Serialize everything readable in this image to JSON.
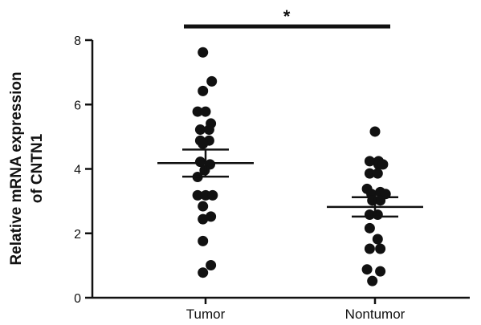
{
  "chart_data": {
    "type": "scatter",
    "ylabel_lines": [
      "Relative mRNA expression",
      "of CNTN1"
    ],
    "ylim": [
      0,
      8
    ],
    "yticks": [
      0,
      2,
      4,
      6,
      8
    ],
    "grid": false,
    "categories": [
      "Tumor",
      "Nontumor"
    ],
    "groups": [
      {
        "category": "Tumor",
        "mean": 4.18,
        "sem_low": 3.76,
        "sem_high": 4.6,
        "points": [
          [
            -0.03,
            7.62
          ],
          [
            -0.03,
            6.42
          ],
          [
            0.07,
            6.72
          ],
          [
            -0.09,
            5.78
          ],
          [
            0.0,
            5.78
          ],
          [
            0.06,
            5.41
          ],
          [
            -0.06,
            5.22
          ],
          [
            0.04,
            5.22
          ],
          [
            -0.06,
            4.88
          ],
          [
            0.04,
            4.88
          ],
          [
            -0.03,
            4.78
          ],
          [
            -0.06,
            4.22
          ],
          [
            0.05,
            4.14
          ],
          [
            -0.01,
            3.96
          ],
          [
            -0.09,
            3.75
          ],
          [
            -0.09,
            3.18
          ],
          [
            0.0,
            3.18
          ],
          [
            0.08,
            3.18
          ],
          [
            -0.03,
            2.84
          ],
          [
            -0.03,
            2.44
          ],
          [
            0.06,
            2.52
          ],
          [
            -0.03,
            1.76
          ],
          [
            0.06,
            1.01
          ],
          [
            -0.03,
            0.78
          ]
        ]
      },
      {
        "category": "Nontumor",
        "mean": 2.82,
        "sem_low": 2.52,
        "sem_high": 3.12,
        "points": [
          [
            0.0,
            5.16
          ],
          [
            -0.06,
            4.24
          ],
          [
            0.04,
            4.24
          ],
          [
            0.04,
            4.14
          ],
          [
            0.09,
            4.14
          ],
          [
            -0.06,
            3.86
          ],
          [
            0.03,
            3.86
          ],
          [
            -0.09,
            3.38
          ],
          [
            -0.04,
            3.22
          ],
          [
            0.06,
            3.28
          ],
          [
            0.12,
            3.22
          ],
          [
            -0.03,
            3.02
          ],
          [
            0.06,
            3.02
          ],
          [
            -0.06,
            2.58
          ],
          [
            0.03,
            2.58
          ],
          [
            -0.06,
            2.16
          ],
          [
            0.03,
            1.82
          ],
          [
            -0.06,
            1.52
          ],
          [
            0.06,
            1.52
          ],
          [
            -0.09,
            0.88
          ],
          [
            0.06,
            0.82
          ],
          [
            -0.03,
            0.52
          ]
        ]
      }
    ],
    "significance": {
      "label": "*",
      "between": [
        "Tumor",
        "Nontumor"
      ]
    },
    "colors": {
      "marker": "#111111",
      "axis": "#111111"
    }
  }
}
